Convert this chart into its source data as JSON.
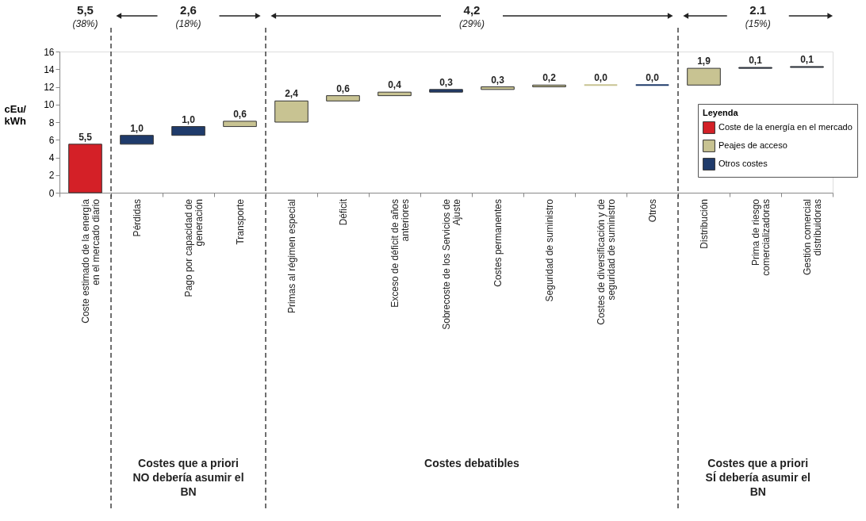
{
  "chart_data": {
    "type": "bar",
    "ylabel": "cEu/kWh",
    "legend_title": "Leyenda",
    "legend": "bottom right",
    "grid": false,
    "categories": [
      "Coste estimado de la energía en el mercado diario",
      "Pérdidas",
      "Pago por capacidad de generación",
      "Transporte",
      "Primas al régimen especial",
      "Déficit",
      "Exceso de déficit de años anteriores",
      "Sobrecoste de los Servicios de Ajuste",
      "Costes permanentes",
      "Seguridad de suministro",
      "Costes de diversificación y de seguridad de suministro",
      "Otros",
      "Distribución",
      "Prima de riesgo comercializadoras",
      "Gestión comercial distribuidoras"
    ],
    "series": [
      {
        "name": "Coste de la energía en el mercado",
        "color": "#d42027",
        "values": [
          5.5,
          null,
          null,
          null,
          null,
          null,
          null,
          null,
          null,
          null,
          null,
          null,
          null,
          null,
          null
        ],
        "base": [
          0,
          null,
          null,
          null,
          null,
          null,
          null,
          null,
          null,
          null,
          null,
          null,
          null,
          null,
          null
        ]
      },
      {
        "name": "Peajes de acceso",
        "color": "#c8c392",
        "values": [
          null,
          null,
          null,
          0.6,
          2.4,
          0.6,
          0.4,
          null,
          0.3,
          0.2,
          0.0,
          null,
          1.9,
          null,
          null
        ],
        "base": [
          null,
          null,
          null,
          7.5,
          8.0,
          10.4,
          11.0,
          null,
          11.7,
          12.0,
          12.2,
          null,
          12.2,
          null,
          null
        ]
      },
      {
        "name": "Otros costes",
        "color": "#1f3b6b",
        "values": [
          null,
          1.0,
          1.0,
          null,
          null,
          null,
          null,
          0.3,
          null,
          null,
          null,
          0.0,
          null,
          0.1,
          0.1
        ],
        "base": [
          null,
          5.5,
          6.5,
          null,
          null,
          null,
          null,
          11.4,
          null,
          null,
          null,
          12.2,
          null,
          14.1,
          14.2
        ]
      }
    ],
    "value_labels": [
      "5,5",
      "1,0",
      "1,0",
      "0,6",
      "2,4",
      "0,6",
      "0,4",
      "0,3",
      "0,3",
      "0,2",
      "0,0",
      "0,0",
      "1,9",
      "0,1",
      "0,1"
    ],
    "ylim": [
      0,
      16
    ],
    "yticks": [
      0,
      2,
      4,
      6,
      8,
      10,
      12,
      14,
      16
    ],
    "annotations": [
      "5,5",
      "(38%)",
      "2,6",
      "(18%)",
      "4,2",
      "(29%)",
      "2.1",
      "(15%)",
      "Costes que a priori NO debería asumir el BN",
      "Costes debatibles",
      "Costes que a priori SÍ debería asumir el BN"
    ]
  }
}
